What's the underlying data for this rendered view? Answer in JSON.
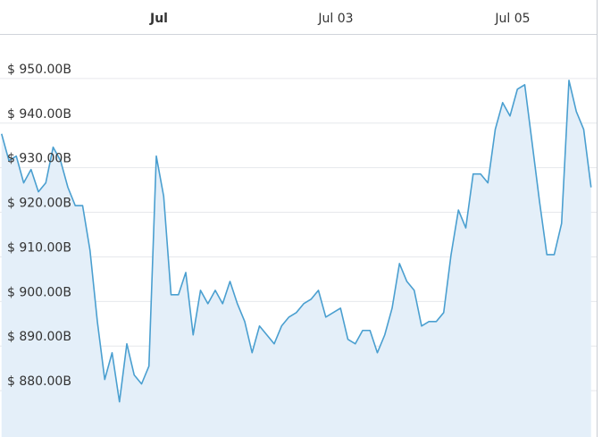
{
  "chart_data": {
    "type": "area",
    "categories": [
      null,
      null,
      null,
      null,
      null,
      null,
      null,
      null,
      null,
      null,
      null,
      null,
      null,
      null,
      null,
      null,
      null,
      null,
      null,
      null,
      null,
      "Jul",
      null,
      null,
      null,
      null,
      null,
      null,
      null,
      null,
      null,
      null,
      null,
      null,
      null,
      null,
      null,
      null,
      null,
      null,
      null,
      null,
      null,
      null,
      null,
      "Jul 03",
      null,
      null,
      null,
      null,
      null,
      null,
      null,
      null,
      null,
      null,
      null,
      null,
      null,
      null,
      null,
      null,
      null,
      null,
      null,
      null,
      null,
      null,
      null,
      "Jul 05",
      null,
      null,
      null,
      null,
      null,
      null,
      null,
      null,
      null,
      null,
      null
    ],
    "values": [
      937.6,
      931.6,
      932.6,
      926.6,
      929.6,
      924.6,
      926.6,
      934.6,
      931.6,
      925.6,
      921.5,
      921.5,
      911.5,
      895.5,
      882.5,
      888.5,
      877.5,
      890.5,
      883.5,
      881.5,
      885.5,
      932.6,
      923.6,
      901.5,
      901.5,
      906.5,
      892.5,
      902.5,
      899.5,
      902.5,
      899.5,
      904.5,
      899.5,
      895.5,
      888.5,
      894.5,
      892.5,
      890.5,
      894.5,
      896.5,
      897.5,
      899.5,
      900.5,
      902.5,
      896.5,
      897.5,
      898.5,
      891.5,
      890.5,
      893.5,
      893.5,
      888.5,
      892.5,
      898.5,
      908.5,
      904.5,
      902.5,
      894.5,
      895.5,
      895.5,
      897.5,
      910.5,
      920.5,
      916.5,
      928.6,
      928.6,
      926.6,
      938.6,
      944.6,
      941.6,
      947.6,
      948.6,
      935.6,
      922.5,
      910.5,
      910.5,
      917.5,
      949.6,
      942.6,
      938.6,
      925.6
    ],
    "color": "#4a9fd0",
    "fill": "#e4eff9",
    "ylim": [
      869.6,
      960
    ],
    "yticks": [
      {
        "value": 880,
        "label": "$ 880.00B"
      },
      {
        "value": 890,
        "label": "$ 890.00B"
      },
      {
        "value": 900,
        "label": "$ 900.00B"
      },
      {
        "value": 910,
        "label": "$ 910.00B"
      },
      {
        "value": 920,
        "label": "$ 920.00B"
      },
      {
        "value": 930,
        "label": "$ 930.00B"
      },
      {
        "value": 940,
        "label": "$ 940.00B"
      },
      {
        "value": 950,
        "label": "$ 950.00B"
      }
    ],
    "grid": true
  }
}
